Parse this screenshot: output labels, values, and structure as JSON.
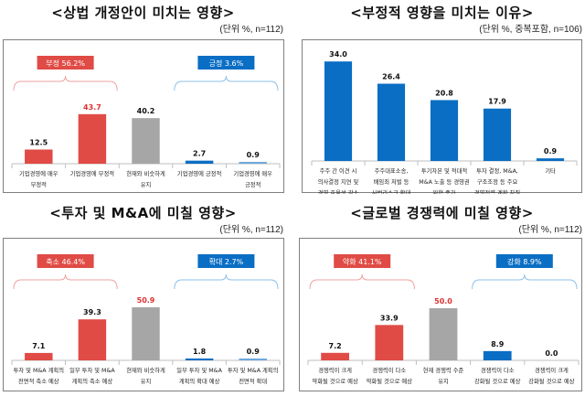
{
  "chart_data": [
    {
      "type": "bar",
      "title": "<상법 개정안이 미치는 영향>",
      "subtitle": "(단위 %, n=112)",
      "categories": [
        [
          "기업경영에 매우",
          "부정적"
        ],
        [
          "기업경영에 부정적"
        ],
        [
          "현재와 비슷하게",
          "유지"
        ],
        [
          "기업경영에 긍정적"
        ],
        [
          "기업경영에 매우",
          "긍정적"
        ]
      ],
      "values": [
        12.5,
        43.7,
        40.2,
        2.7,
        0.9
      ],
      "value_labels": [
        "12.5",
        "43.7",
        "40.2",
        "2.7",
        "0.9"
      ],
      "bar_colors": [
        "#e04b45",
        "#e04b45",
        "#a6a6a6",
        "#0a6ec4",
        "#6fa8dc"
      ],
      "label_colors": [
        "#111111",
        "#e03030",
        "#111111",
        "#111111",
        "#111111"
      ],
      "groups": [
        {
          "label": "부정 56.2%",
          "color": "#e04b45",
          "brace_color": "#f0a0a0",
          "span": [
            0,
            1
          ]
        },
        {
          "label": "긍정 3.6%",
          "color": "#0a6ec4",
          "brace_color": "#8cc0ea",
          "span": [
            3,
            4
          ]
        }
      ]
    },
    {
      "type": "bar",
      "title": "<부정적 영향을 미치는 이유>",
      "subtitle": "(단위 %, 중복포함, n=106)",
      "categories": [
        [
          "주주 간 이견 시",
          "의사결정 지연 및",
          "경영 효율성 감소"
        ],
        [
          "주주대표소송,",
          "배임죄 처벌 등",
          "사법리스크 확대"
        ],
        [
          "투기자본 및 적대적",
          "M&A 노출 등 경영권",
          "위협 증가"
        ],
        [
          "투자 결정, M&A,",
          "구조조정 등 주요",
          "경영전략·계획 차질"
        ],
        [
          "기타"
        ]
      ],
      "values": [
        34.0,
        26.4,
        20.8,
        17.9,
        0.9
      ],
      "value_labels": [
        "34.0",
        "26.4",
        "20.8",
        "17.9",
        "0.9"
      ],
      "bar_colors": [
        "#0a6ec4",
        "#0a6ec4",
        "#0a6ec4",
        "#0a6ec4",
        "#0a6ec4"
      ],
      "label_colors": [
        "#111111",
        "#111111",
        "#111111",
        "#111111",
        "#111111"
      ],
      "groups": []
    },
    {
      "type": "bar",
      "title": "<투자 및 M&A에 미칠 영향>",
      "subtitle": "(단위 %, n=112)",
      "categories": [
        [
          "투자 및 M&A 계획의",
          "전면적 축소 예상"
        ],
        [
          "일부 투자 및 M&A",
          "계획의 축소 예상"
        ],
        [
          "현재와 비슷하게",
          "유지"
        ],
        [
          "일부 투자 및 M&A",
          "계획의 확대 예상"
        ],
        [
          "투자 및 M&A 계획의",
          "전면적 확대"
        ]
      ],
      "values": [
        7.1,
        39.3,
        50.9,
        1.8,
        0.9
      ],
      "value_labels": [
        "7.1",
        "39.3",
        "50.9",
        "1.8",
        "0.9"
      ],
      "bar_colors": [
        "#e04b45",
        "#e04b45",
        "#a6a6a6",
        "#0a6ec4",
        "#6fa8dc"
      ],
      "label_colors": [
        "#111111",
        "#111111",
        "#e03030",
        "#111111",
        "#111111"
      ],
      "groups": [
        {
          "label": "축소 46.4%",
          "color": "#e04b45",
          "brace_color": "#f0a0a0",
          "span": [
            0,
            1
          ]
        },
        {
          "label": "확대 2.7%",
          "color": "#0a6ec4",
          "brace_color": "#8cc0ea",
          "span": [
            3,
            4
          ]
        }
      ]
    },
    {
      "type": "bar",
      "title": "<글로벌 경쟁력에 미칠 영향>",
      "subtitle": "(단위 %, n=112)",
      "categories": [
        [
          "경쟁력이 크게",
          "약화될 것으로 예상"
        ],
        [
          "경쟁력이 다소",
          "약화될 것으로 예상"
        ],
        [
          "현재 경쟁력 수준",
          "유지"
        ],
        [
          "경쟁력이 다소",
          "강화될 것으로 예상"
        ],
        [
          "경쟁력이 크게",
          "강화될 것으로 예상"
        ]
      ],
      "values": [
        7.2,
        33.9,
        50.0,
        8.9,
        0.0
      ],
      "value_labels": [
        "7.2",
        "33.9",
        "50.0",
        "8.9",
        "0.0"
      ],
      "bar_colors": [
        "#e04b45",
        "#e04b45",
        "#a6a6a6",
        "#0a6ec4",
        "#6fa8dc"
      ],
      "label_colors": [
        "#111111",
        "#111111",
        "#e03030",
        "#111111",
        "#111111"
      ],
      "groups": [
        {
          "label": "약화 41.1%",
          "color": "#e04b45",
          "brace_color": "#f0a0a0",
          "span": [
            0,
            1
          ]
        },
        {
          "label": "강화 8.9%",
          "color": "#0a6ec4",
          "brace_color": "#8cc0ea",
          "span": [
            3,
            4
          ]
        }
      ]
    }
  ]
}
